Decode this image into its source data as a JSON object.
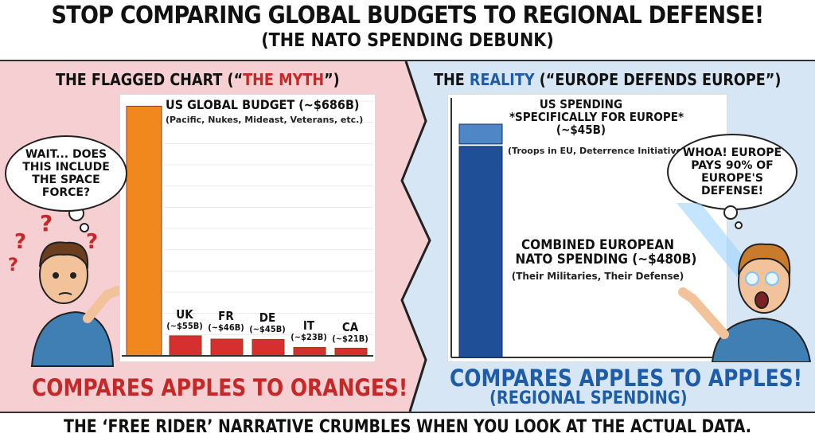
{
  "header": {
    "title": "STOP COMPARING GLOBAL BUDGETS TO REGIONAL DEFENSE!",
    "subtitle": "(THE NATO SPENDING DEBUNK)"
  },
  "left_panel": {
    "title_prefix": "THE FLAGGED CHART (“",
    "title_highlight": "THE MYTH",
    "title_suffix": "”)",
    "bubble_text": "WAIT... DOES THIS INCLUDE THE SPACE FORCE?",
    "question_mark": "?",
    "caption": "COMPARES APPLES TO ORANGES!"
  },
  "right_panel": {
    "title_prefix": "THE ",
    "title_highlight": "REALITY",
    "title_suffix": " (“EUROPE DEFENDS EUROPE”)",
    "bubble_text": "WHOA! EUROPE PAYS 90% OF EUROPE'S DEFENSE!",
    "caption": "COMPARES APPLES TO APPLES!",
    "caption_sub": "(REGIONAL SPENDING)"
  },
  "footer": {
    "text": "THE ‘FREE RIDER’ NARRATIVE CRUMBLES WHEN YOU LOOK AT THE ACTUAL DATA."
  },
  "colors": {
    "left_bg": "#f5cfd1",
    "right_bg": "#d6e6f4",
    "us_bar": "#f0881e",
    "country_bar": "#d62f2f",
    "europe_bar": "#1f4f97",
    "us_europe_bar": "#4f86c6"
  },
  "chart_data": [
    {
      "type": "bar",
      "categories": [
        "US",
        "UK",
        "FR",
        "DE",
        "IT",
        "CA"
      ],
      "values": [
        686,
        55,
        46,
        45,
        23,
        21
      ],
      "labels": [
        {
          "title": "US GLOBAL BUDGET (~$686B)",
          "detail": "(Pacific, Nukes, Mideast, Veterans, etc.)"
        },
        {
          "title": "UK",
          "detail": "(~$55B)"
        },
        {
          "title": "FR",
          "detail": "(~$46B)"
        },
        {
          "title": "DE",
          "detail": "(~$45B)"
        },
        {
          "title": "IT",
          "detail": "(~$23B)"
        },
        {
          "title": "CA",
          "detail": "(~$21B)"
        }
      ],
      "ylim": [
        0,
        700
      ]
    },
    {
      "type": "bar",
      "stacked": true,
      "categories": [
        "Europe"
      ],
      "series": [
        {
          "name": "COMBINED EUROPEAN NATO SPENDING (~$480B)",
          "values": [
            480
          ]
        },
        {
          "name": "US SPENDING *SPECIFICALLY FOR EUROPE* (~$45B)",
          "values": [
            45
          ]
        }
      ],
      "labels": [
        {
          "lines": [
            "COMBINED EUROPEAN",
            "NATO SPENDING (~$480B)"
          ],
          "detail": "(Their Militaries, Their Defense)"
        },
        {
          "lines": [
            "US SPENDING",
            "*SPECIFICALLY FOR EUROPE*",
            "(~$45B)"
          ],
          "detail": "(Troops in EU, Deterrence Initiative)"
        }
      ],
      "ylim": [
        0,
        525
      ]
    }
  ]
}
